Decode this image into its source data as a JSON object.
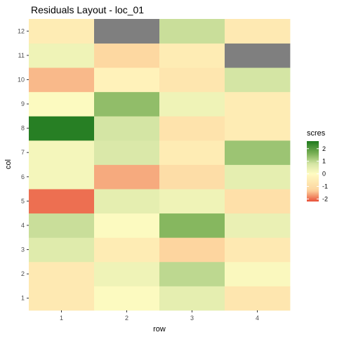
{
  "chart_data": {
    "type": "heatmap",
    "title": "Residuals Layout - loc_01",
    "xlabel": "row",
    "ylabel": "col",
    "x_categories": [
      "1",
      "2",
      "3",
      "4"
    ],
    "y_categories": [
      "1",
      "2",
      "3",
      "4",
      "5",
      "6",
      "7",
      "8",
      "9",
      "10",
      "11",
      "12"
    ],
    "cells": [
      {
        "row": 1,
        "col": 1,
        "value": -0.6
      },
      {
        "row": 2,
        "col": 1,
        "value": 0.05
      },
      {
        "row": 3,
        "col": 1,
        "value": 0.5
      },
      {
        "row": 4,
        "col": 1,
        "value": -0.7
      },
      {
        "row": 1,
        "col": 2,
        "value": -0.6
      },
      {
        "row": 2,
        "col": 2,
        "value": 0.3
      },
      {
        "row": 3,
        "col": 2,
        "value": 1.0
      },
      {
        "row": 4,
        "col": 2,
        "value": 0.1
      },
      {
        "row": 1,
        "col": 3,
        "value": 0.6
      },
      {
        "row": 2,
        "col": 3,
        "value": -0.5
      },
      {
        "row": 3,
        "col": 3,
        "value": -1.3
      },
      {
        "row": 4,
        "col": 3,
        "value": -0.6
      },
      {
        "row": 1,
        "col": 4,
        "value": 0.9
      },
      {
        "row": 2,
        "col": 4,
        "value": 0.05
      },
      {
        "row": 3,
        "col": 4,
        "value": 1.5
      },
      {
        "row": 4,
        "col": 4,
        "value": 0.4
      },
      {
        "row": 1,
        "col": 5,
        "value": -2.0
      },
      {
        "row": 2,
        "col": 5,
        "value": 0.5
      },
      {
        "row": 3,
        "col": 5,
        "value": 0.3
      },
      {
        "row": 4,
        "col": 5,
        "value": -0.9
      },
      {
        "row": 1,
        "col": 6,
        "value": 0.2
      },
      {
        "row": 2,
        "col": 6,
        "value": -1.6
      },
      {
        "row": 3,
        "col": 6,
        "value": -1.0
      },
      {
        "row": 4,
        "col": 6,
        "value": 0.5
      },
      {
        "row": 1,
        "col": 7,
        "value": 0.2
      },
      {
        "row": 2,
        "col": 7,
        "value": 0.7
      },
      {
        "row": 3,
        "col": 7,
        "value": -0.5
      },
      {
        "row": 4,
        "col": 7,
        "value": 1.3
      },
      {
        "row": 1,
        "col": 8,
        "value": 2.5
      },
      {
        "row": 2,
        "col": 8,
        "value": 0.8
      },
      {
        "row": 3,
        "col": 8,
        "value": -0.8
      },
      {
        "row": 4,
        "col": 8,
        "value": -0.5
      },
      {
        "row": 1,
        "col": 9,
        "value": 0.05
      },
      {
        "row": 2,
        "col": 9,
        "value": 1.4
      },
      {
        "row": 3,
        "col": 9,
        "value": 0.3
      },
      {
        "row": 4,
        "col": 9,
        "value": -0.5
      },
      {
        "row": 1,
        "col": 10,
        "value": -1.5
      },
      {
        "row": 2,
        "col": 10,
        "value": -0.3
      },
      {
        "row": 3,
        "col": 10,
        "value": -0.7
      },
      {
        "row": 4,
        "col": 10,
        "value": 0.8
      },
      {
        "row": 1,
        "col": 11,
        "value": 0.3
      },
      {
        "row": 2,
        "col": 11,
        "value": -1.2
      },
      {
        "row": 3,
        "col": 11,
        "value": -0.5
      },
      {
        "row": 4,
        "col": 11,
        "value": null
      },
      {
        "row": 1,
        "col": 12,
        "value": -0.5
      },
      {
        "row": 2,
        "col": 12,
        "value": null
      },
      {
        "row": 3,
        "col": 12,
        "value": 0.9
      },
      {
        "row": 4,
        "col": 12,
        "value": -0.6
      }
    ],
    "legend": {
      "title": "scres",
      "ticks": [
        2,
        1,
        0,
        -1,
        -2
      ],
      "tick_labels": [
        "2",
        "1",
        "0",
        "-1",
        "-2"
      ],
      "placement": "right",
      "range": [
        -2.2,
        2.6
      ]
    },
    "colors": {
      "low": "#e8513a",
      "mid": "#fffbc2",
      "high": "#1e7a1e",
      "na": "#7f7f7f",
      "negative_light": "#fdd49e",
      "positive_light": "#d6e6a6",
      "positive_medium": "#7fb359"
    },
    "grid": true,
    "panel_background": "#ebebeb"
  }
}
